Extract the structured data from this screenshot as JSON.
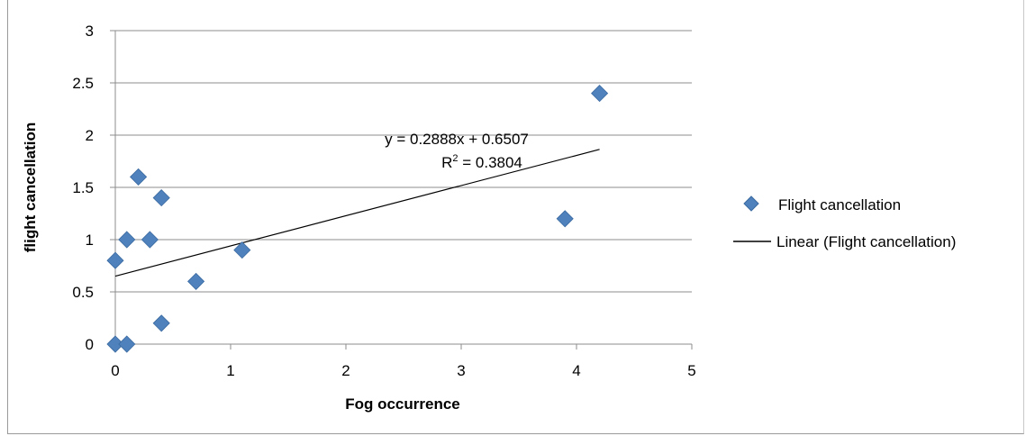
{
  "chart_data": {
    "type": "scatter",
    "title": "",
    "xlabel": "Fog occurrence",
    "ylabel": "flight cancellation",
    "xlim": [
      0,
      5
    ],
    "ylim": [
      0,
      3
    ],
    "xticks": [
      "0",
      "1",
      "2",
      "3",
      "4",
      "5"
    ],
    "yticks": [
      "0",
      "0.5",
      "1",
      "1.5",
      "2",
      "2.5",
      "3"
    ],
    "grid": "horizontal",
    "legend_position": "right",
    "series": [
      {
        "name": "Flight cancellation",
        "marker": "diamond",
        "color": "#4f81bd",
        "points": [
          {
            "x": 0,
            "y": 0
          },
          {
            "x": 0.1,
            "y": 0
          },
          {
            "x": 0,
            "y": 0.8
          },
          {
            "x": 0.1,
            "y": 1
          },
          {
            "x": 0.2,
            "y": 1.6
          },
          {
            "x": 0.3,
            "y": 1
          },
          {
            "x": 0.4,
            "y": 1.4
          },
          {
            "x": 0.4,
            "y": 0.2
          },
          {
            "x": 0.7,
            "y": 0.6
          },
          {
            "x": 1.1,
            "y": 0.9
          },
          {
            "x": 3.9,
            "y": 1.2
          },
          {
            "x": 4.2,
            "y": 2.4
          }
        ]
      }
    ],
    "trendline": {
      "name": "Linear (Flight cancellation)",
      "type": "linear",
      "slope": 0.2888,
      "intercept": 0.6507,
      "x_range": [
        0,
        4.2
      ],
      "color": "#000000",
      "equation": "y = 0.2888x + 0.6507",
      "r_squared_prefix": "R",
      "r_squared_sup": "2",
      "r_squared_value": " = 0.3804"
    }
  }
}
